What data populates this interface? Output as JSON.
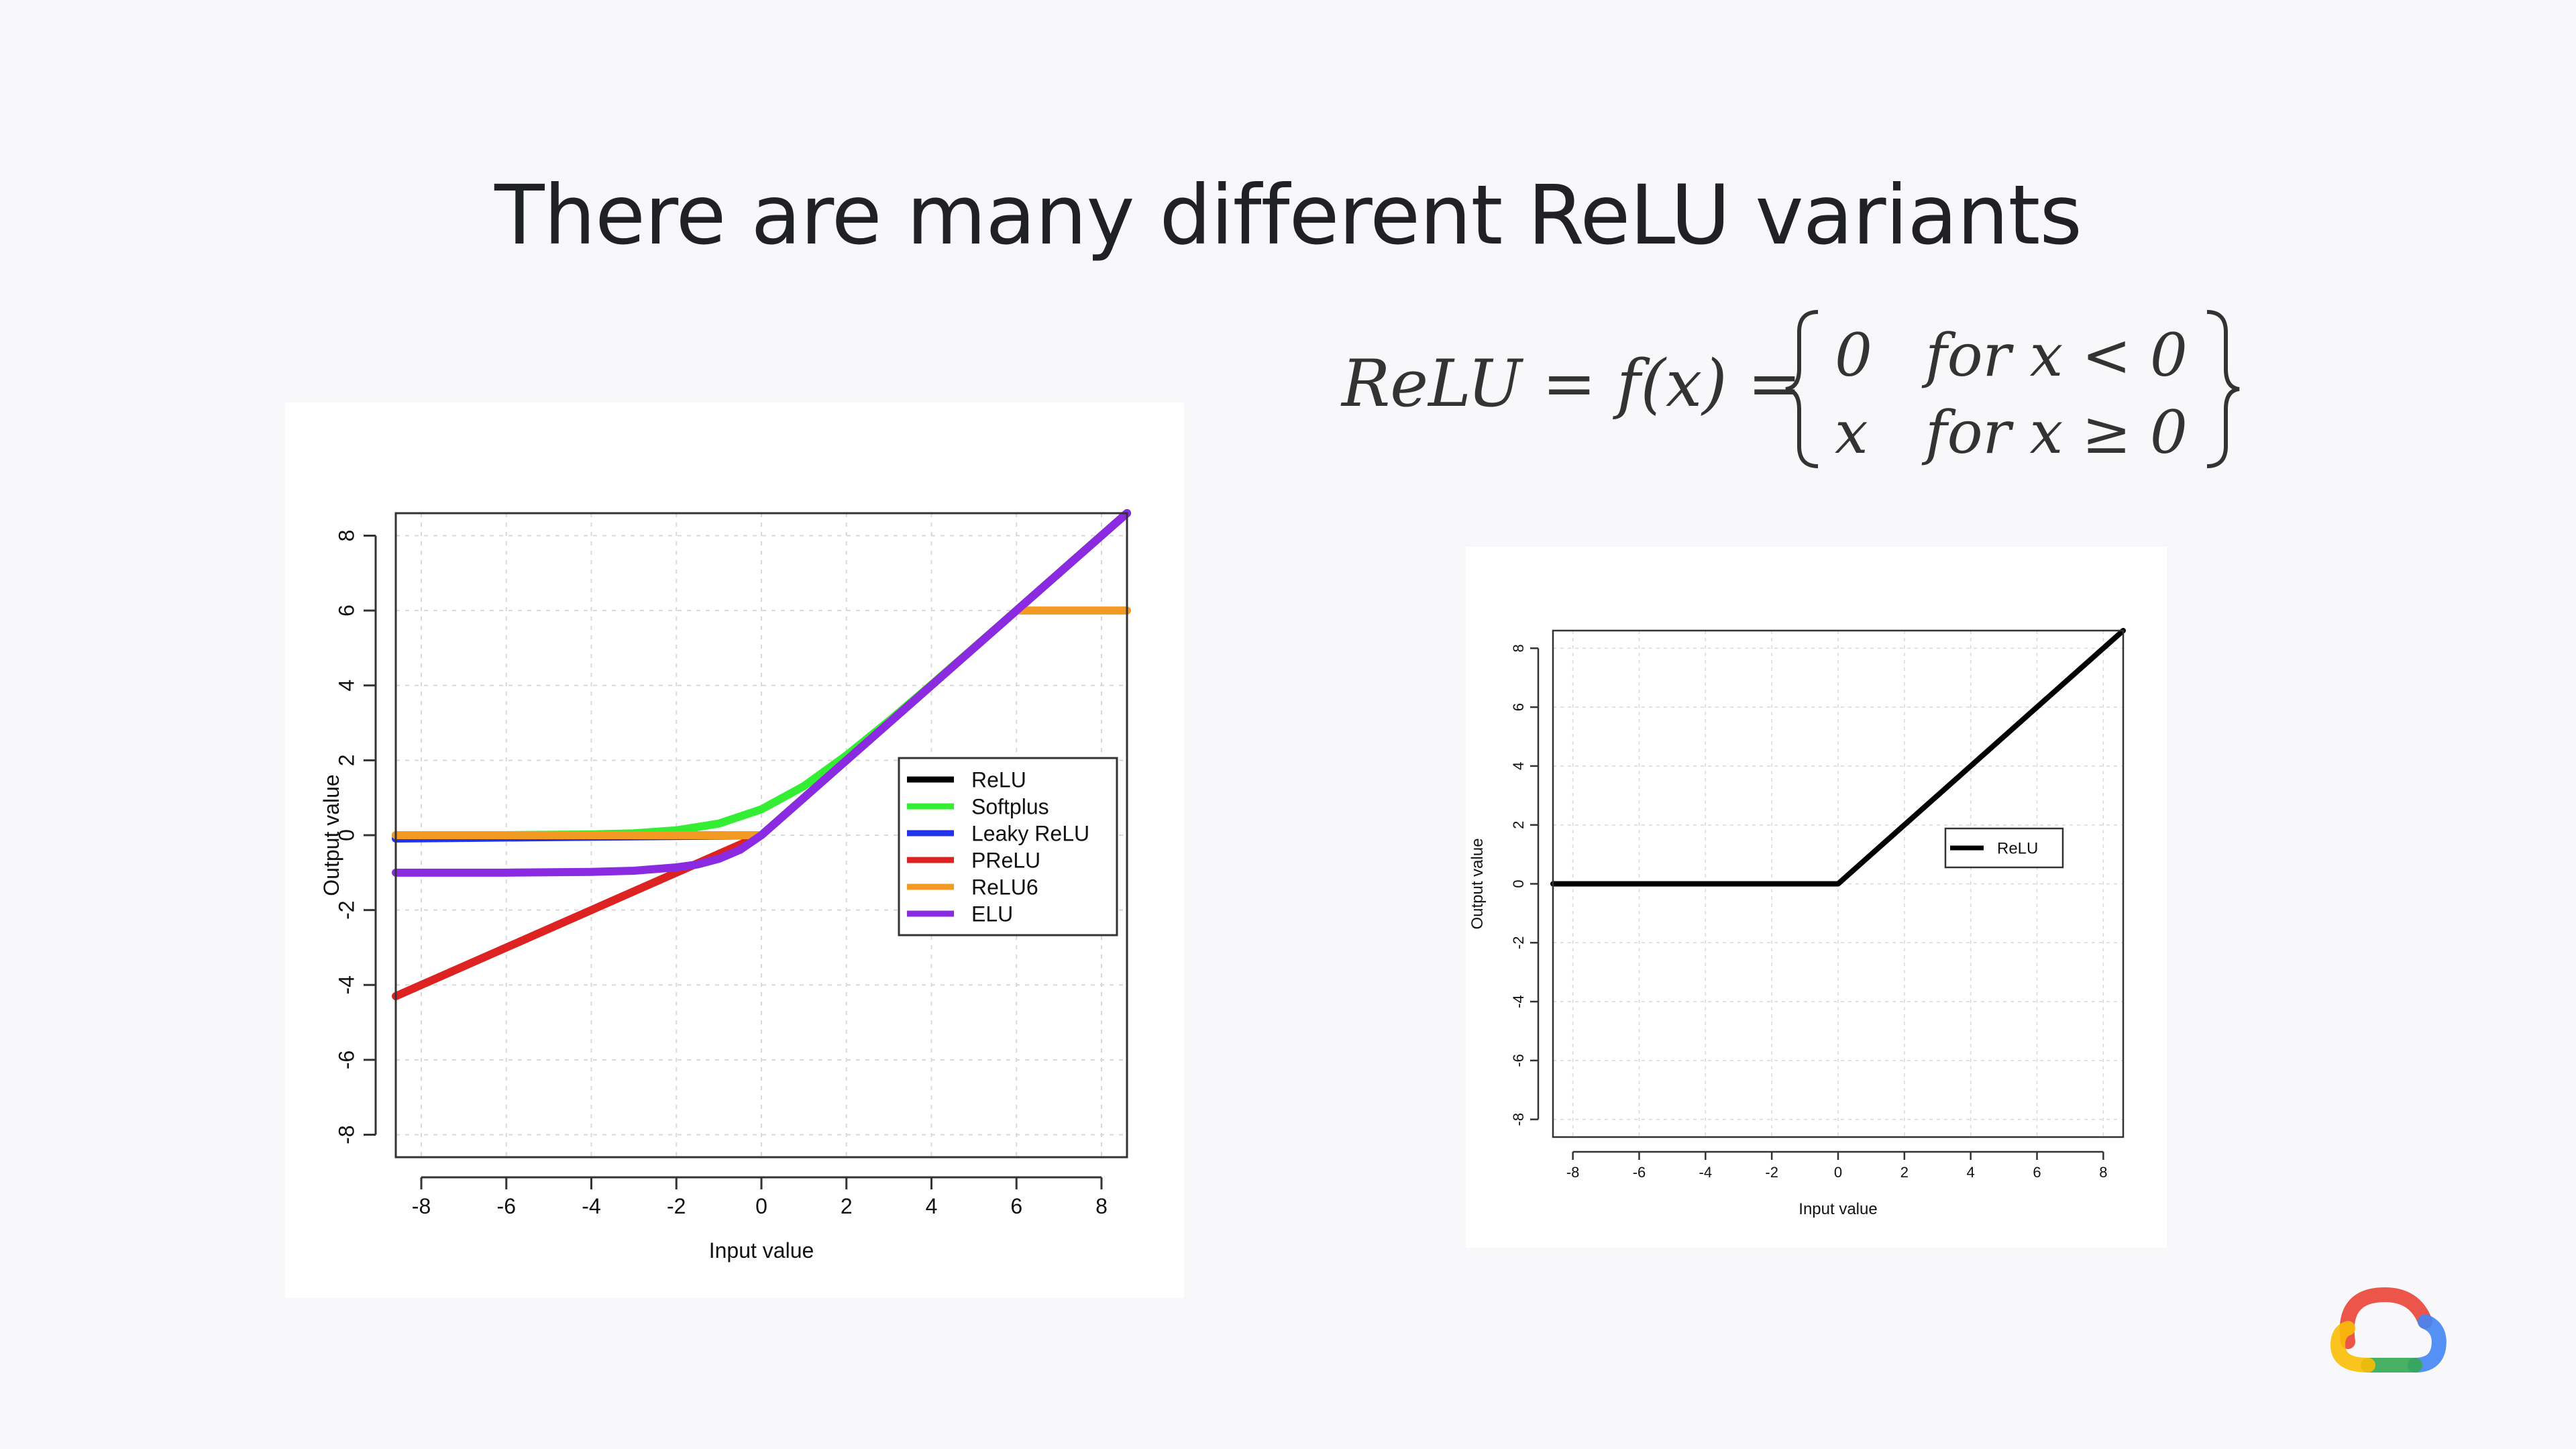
{
  "slide": {
    "title": "There are many different ReLU variants"
  },
  "formula": {
    "lhs": "ReLU = f(x) =",
    "cases": [
      {
        "value": "0",
        "condition": "for x < 0"
      },
      {
        "value": "x",
        "condition": "for x ≥ 0"
      }
    ]
  },
  "chart_data": [
    {
      "type": "line",
      "xlabel": "Input value",
      "ylabel": "Output value",
      "xlim": [
        -8.6,
        8.6
      ],
      "ylim": [
        -8.6,
        8.6
      ],
      "xticks": [
        -8,
        -6,
        -4,
        -2,
        0,
        2,
        4,
        6,
        8
      ],
      "yticks": [
        -8,
        -6,
        -4,
        -2,
        0,
        2,
        4,
        6,
        8
      ],
      "grid": true,
      "legend_position": "center-right",
      "series": [
        {
          "name": "ReLU",
          "color": "#000000",
          "x": [
            -8.6,
            0,
            8.6
          ],
          "y": [
            0,
            0,
            8.6
          ]
        },
        {
          "name": "Softplus",
          "color": "#33ee33",
          "x": [
            -8.6,
            -6,
            -4,
            -3,
            -2,
            -1,
            0,
            1,
            2,
            3,
            4,
            6,
            8.6
          ],
          "y": [
            0.0,
            0.0,
            0.02,
            0.05,
            0.13,
            0.31,
            0.69,
            1.31,
            2.13,
            3.05,
            4.02,
            6.0,
            8.6
          ]
        },
        {
          "name": "Leaky ReLU",
          "color": "#2233ee",
          "x": [
            -8.6,
            0,
            8.6
          ],
          "y": [
            -0.09,
            0,
            8.6
          ]
        },
        {
          "name": "PReLU",
          "color": "#dd2222",
          "x": [
            -8.6,
            0,
            8.6
          ],
          "y": [
            -4.3,
            0,
            8.6
          ]
        },
        {
          "name": "ReLU6",
          "color": "#f29a22",
          "x": [
            -8.6,
            0,
            6,
            8.6
          ],
          "y": [
            0,
            0,
            6,
            6
          ]
        },
        {
          "name": "ELU",
          "color": "#8a2be2",
          "x": [
            -8.6,
            -6,
            -4,
            -3,
            -2,
            -1.5,
            -1,
            -0.5,
            0,
            8.6
          ],
          "y": [
            -1.0,
            -1.0,
            -0.98,
            -0.95,
            -0.86,
            -0.78,
            -0.63,
            -0.39,
            0,
            8.6
          ]
        }
      ]
    },
    {
      "type": "line",
      "xlabel": "Input value",
      "ylabel": "Output value",
      "xlim": [
        -8.6,
        8.6
      ],
      "ylim": [
        -8.6,
        8.6
      ],
      "xticks": [
        -8,
        -6,
        -4,
        -2,
        0,
        2,
        4,
        6,
        8
      ],
      "yticks": [
        -8,
        -6,
        -4,
        -2,
        0,
        2,
        4,
        6,
        8
      ],
      "grid": true,
      "legend_position": "center-right",
      "series": [
        {
          "name": "ReLU",
          "color": "#000000",
          "x": [
            -8.6,
            0,
            8.6
          ],
          "y": [
            0,
            0,
            8.6
          ]
        }
      ]
    }
  ]
}
